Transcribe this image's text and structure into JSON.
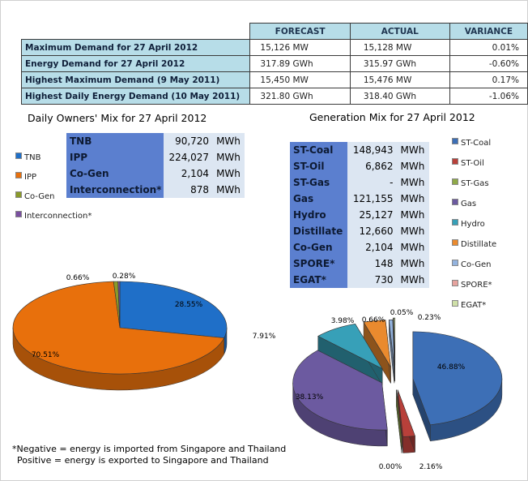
{
  "summary": {
    "headers": [
      "FORECAST",
      "ACTUAL",
      "VARIANCE"
    ],
    "rows": [
      {
        "label": "Maximum Demand for 27 April 2012",
        "forecast": "15,126 MW",
        "actual": "15,128 MW",
        "variance": "0.01%"
      },
      {
        "label": "Energy Demand for 27 April 2012",
        "forecast": "317.89 GWh",
        "actual": "315.97 GWh",
        "variance": "-0.60%"
      },
      {
        "label": "Highest Maximum Demand (9 May 2011)",
        "forecast": "15,450 MW",
        "actual": "15,476 MW",
        "variance": "0.17%"
      },
      {
        "label": "Highest Daily Energy Demand (10 May 2011)",
        "forecast": "321.80 GWh",
        "actual": "318.40 GWh",
        "variance": "-1.06%"
      }
    ]
  },
  "owners": {
    "title": "Daily Owners' Mix for 27 April 2012",
    "unit": "MWh",
    "rows": [
      {
        "name": "TNB",
        "value": "90,720"
      },
      {
        "name": "IPP",
        "value": "224,027"
      },
      {
        "name": "Co-Gen",
        "value": "2,104"
      },
      {
        "name": "Interconnection*",
        "value": "878"
      }
    ],
    "legend": [
      "TNB",
      "IPP",
      "Co-Gen",
      "Interconnection*"
    ]
  },
  "generation": {
    "title": "Generation Mix for 27 April 2012",
    "unit": "MWh",
    "rows": [
      {
        "name": "ST-Coal",
        "value": "148,943"
      },
      {
        "name": "ST-Oil",
        "value": "6,862"
      },
      {
        "name": "ST-Gas",
        "value": "-"
      },
      {
        "name": "Gas",
        "value": "121,155"
      },
      {
        "name": "Hydro",
        "value": "25,127"
      },
      {
        "name": "Distillate",
        "value": "12,660"
      },
      {
        "name": "Co-Gen",
        "value": "2,104"
      },
      {
        "name": "SPORE*",
        "value": "148"
      },
      {
        "name": "EGAT*",
        "value": "730"
      }
    ],
    "legend": [
      "ST-Coal",
      "ST-Oil",
      "ST-Gas",
      "Gas",
      "Hydro",
      "Distillate",
      "Co-Gen",
      "SPORE*",
      "EGAT*"
    ]
  },
  "chart_data": [
    {
      "type": "pie",
      "title": "Daily Owners' Mix for 27 April 2012",
      "labels": [
        "TNB",
        "IPP",
        "Co-Gen",
        "Interconnection*"
      ],
      "values": [
        28.55,
        70.51,
        0.66,
        0.28
      ],
      "value_labels": [
        "28.55%",
        "70.51%",
        "0.66%",
        "0.28%"
      ],
      "colors": [
        "#1f6fc8",
        "#e8700c",
        "#8a9a2a",
        "#7a4fa0"
      ],
      "legend": "left"
    },
    {
      "type": "pie",
      "title": "Generation Mix for 27 April 2012",
      "labels": [
        "ST-Coal",
        "ST-Oil",
        "ST-Gas",
        "Gas",
        "Hydro",
        "Distillate",
        "Co-Gen",
        "SPORE*",
        "EGAT*"
      ],
      "values": [
        46.88,
        2.16,
        0.0,
        38.13,
        7.91,
        3.98,
        0.66,
        0.05,
        0.23
      ],
      "value_labels": [
        "46.88%",
        "2.16%",
        "0.00%",
        "38.13%",
        "7.91%",
        "3.98%",
        "0.66%",
        "0.05%",
        "0.23%"
      ],
      "colors": [
        "#3d6fb6",
        "#b8403a",
        "#8fa948",
        "#6c5aa0",
        "#37a0b8",
        "#ea8a2e",
        "#93b3de",
        "#e6a39e",
        "#cfe0a8"
      ],
      "legend": "right"
    }
  ],
  "note": {
    "line1": "*Negative = energy is imported from Singapore and Thailand",
    "line2": "Positive = energy is exported to Singapore and Thailand"
  }
}
